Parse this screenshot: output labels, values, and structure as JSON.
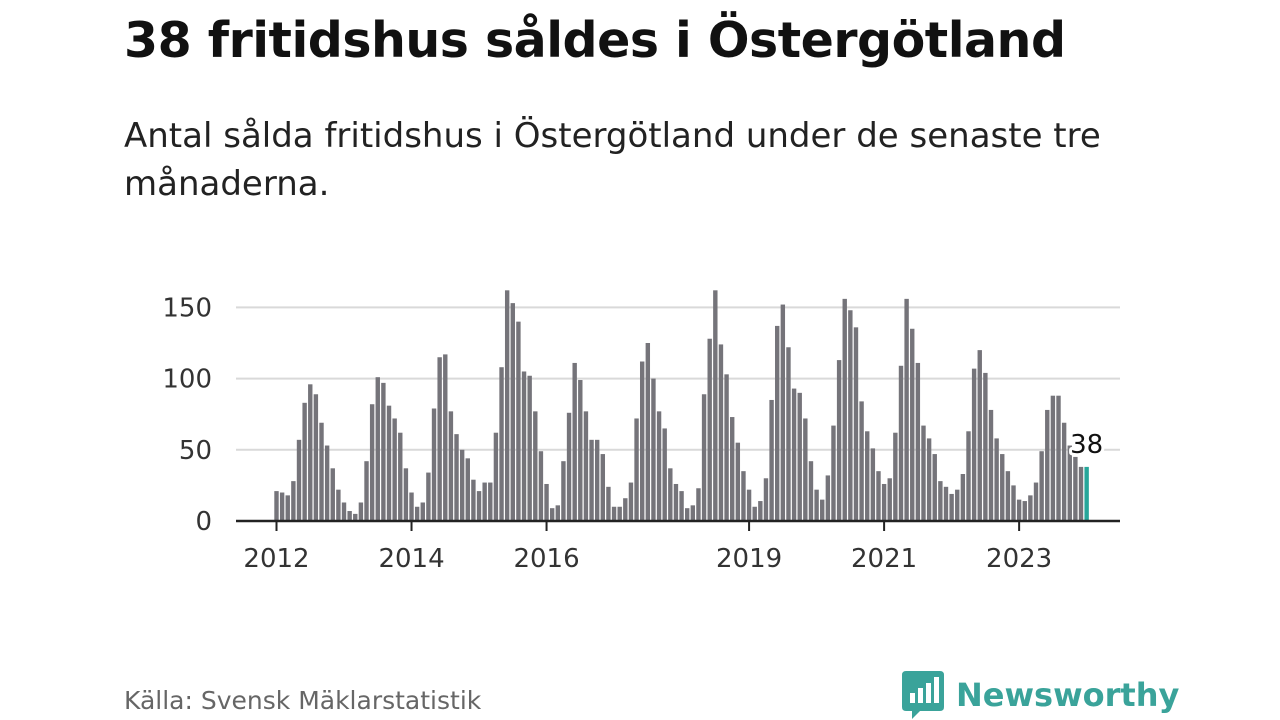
{
  "colors": {
    "bar": "#75747a",
    "highlight": "#26a69a",
    "grid": "#d9d9d9",
    "axis": "#222222",
    "brand": "#3aa39a"
  },
  "footer": {
    "source": "Källa: Svensk Mäklarstatistik",
    "brand_name": "Newsworthy",
    "brand_icon": "newsworthy-chart-bubble-icon"
  },
  "chart_data": {
    "type": "bar",
    "title": "38 fritidshus såldes i Östergötland",
    "subtitle": "Antal sålda fritidshus i Östergötland under de senaste tre månaderna.",
    "xlabel": "",
    "ylabel": "",
    "ylim": [
      0,
      165
    ],
    "yticks": [
      0,
      50,
      100,
      150
    ],
    "xticks": [
      {
        "label": "2012",
        "year": 2012
      },
      {
        "label": "2014",
        "year": 2014
      },
      {
        "label": "2016",
        "year": 2016
      },
      {
        "label": "2019",
        "year": 2019
      },
      {
        "label": "2021",
        "year": 2021
      },
      {
        "label": "2023",
        "year": 2023
      }
    ],
    "grid": true,
    "start_month": "2012-01",
    "end_month": "2024-01",
    "values": [
      21,
      20,
      18,
      28,
      57,
      83,
      96,
      89,
      69,
      53,
      37,
      22,
      13,
      7,
      5,
      13,
      42,
      82,
      101,
      97,
      81,
      72,
      62,
      37,
      20,
      10,
      13,
      34,
      79,
      115,
      117,
      77,
      61,
      50,
      44,
      29,
      21,
      27,
      27,
      62,
      108,
      162,
      153,
      140,
      105,
      102,
      77,
      49,
      26,
      9,
      11,
      42,
      76,
      111,
      99,
      77,
      57,
      57,
      47,
      24,
      10,
      10,
      16,
      27,
      72,
      112,
      125,
      100,
      77,
      65,
      37,
      26,
      21,
      9,
      11,
      23,
      89,
      128,
      162,
      124,
      103,
      73,
      55,
      35,
      22,
      10,
      14,
      30,
      85,
      137,
      152,
      122,
      93,
      90,
      72,
      42,
      22,
      15,
      32,
      67,
      113,
      156,
      148,
      136,
      84,
      63,
      51,
      35,
      26,
      30,
      62,
      109,
      156,
      135,
      111,
      67,
      58,
      47,
      28,
      24,
      19,
      22,
      33,
      63,
      107,
      120,
      104,
      78,
      58,
      47,
      35,
      25,
      15,
      14,
      18,
      27,
      49,
      78,
      88,
      88,
      69,
      53,
      45,
      38,
      38
    ],
    "highlight_index": 144,
    "highlight_label": "38"
  }
}
